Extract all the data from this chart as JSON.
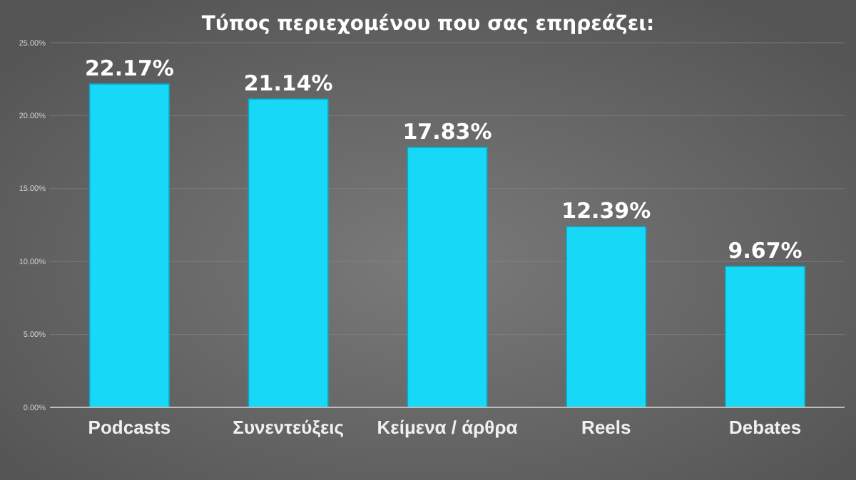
{
  "chart_data": {
    "type": "bar",
    "title": "Τύπος περιεχομένου που σας επηρεάζει:",
    "categories": [
      "Podcasts",
      "Συνεντεύξεις",
      "Κείμενα / άρθρα",
      "Reels",
      "Debates"
    ],
    "values": [
      22.17,
      21.14,
      17.83,
      12.39,
      9.67
    ],
    "value_labels": [
      "22.17%",
      "21.14%",
      "17.83%",
      "12.39%",
      "9.67%"
    ],
    "color": "#17d8f7",
    "ylim": [
      0,
      25
    ],
    "yticks": [
      {
        "value": 0,
        "label": "0.00%"
      },
      {
        "value": 5,
        "label": "5.00%"
      },
      {
        "value": 10,
        "label": "10.00%"
      },
      {
        "value": 15,
        "label": "15.00%"
      },
      {
        "value": 20,
        "label": "20.00%"
      },
      {
        "value": 25,
        "label": "25.00%"
      }
    ],
    "grid": "y"
  }
}
